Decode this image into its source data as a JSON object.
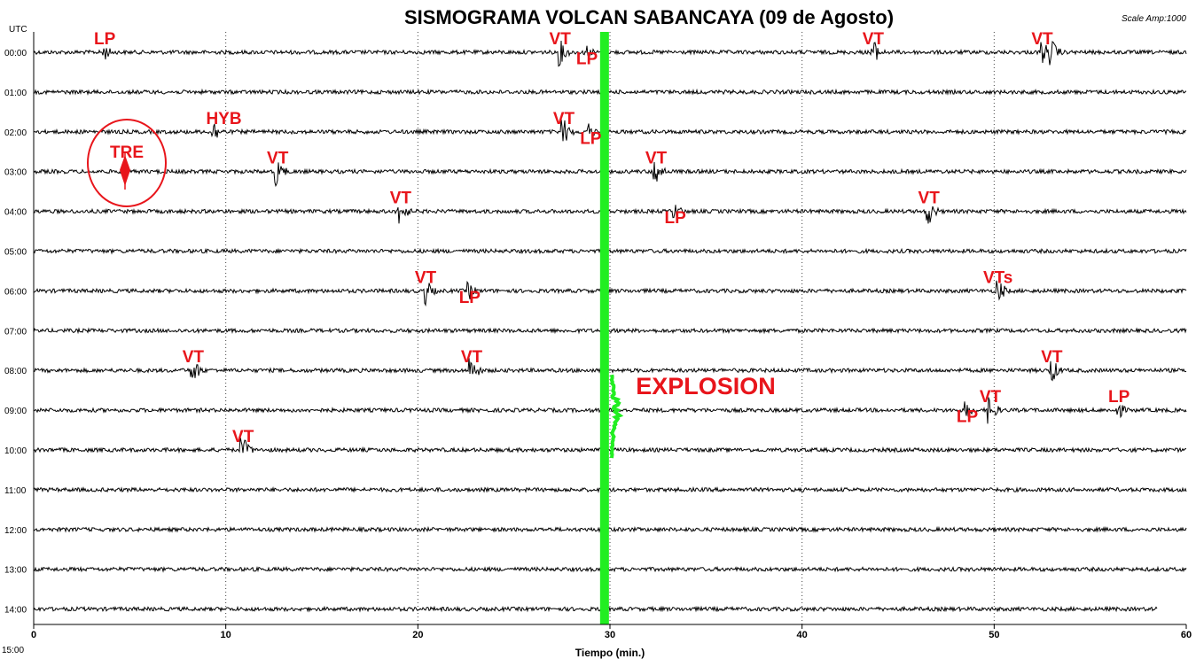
{
  "chart_data": {
    "type": "line",
    "title": "SISMOGRAMA VOLCAN SABANCAYA (09 de Agosto)",
    "scale_text": "Scale Amp:1000",
    "y_axis_label": "UTC",
    "xlabel": "Tiempo (min.)",
    "xlim": [
      0,
      60
    ],
    "x_ticks": [
      "0",
      "10",
      "20",
      "30",
      "40",
      "50",
      "60"
    ],
    "hour_labels": [
      "00:00",
      "01:00",
      "02:00",
      "03:00",
      "04:00",
      "05:00",
      "06:00",
      "07:00",
      "08:00",
      "09:00",
      "10:00",
      "11:00",
      "12:00",
      "13:00",
      "14:00",
      "15:00"
    ],
    "grid": "vertical dotted every 10 min",
    "colors": {
      "trace": "#000000",
      "events": "#e8151b",
      "explosion_signal": "#22ee22"
    },
    "explosion": {
      "label": "EXPLOSION",
      "hour": "09:00",
      "minute_start": 29.3,
      "minute_end": 30.4
    },
    "tremor_marker": {
      "label": "TRE",
      "hour": "03:00",
      "minute": 4.8
    },
    "trace_end_minute_last_row": 58.5,
    "events": [
      {
        "label": "LP",
        "hour": 0,
        "minute": 3.7
      },
      {
        "label": "VT",
        "hour": 0,
        "minute": 27.4
      },
      {
        "label": "LP",
        "hour": 0,
        "minute": 28.8
      },
      {
        "label": "VT",
        "hour": 0,
        "minute": 43.7
      },
      {
        "label": "VT",
        "hour": 0,
        "minute": 52.5
      },
      {
        "label": "VT",
        "hour": 0,
        "minute": 53.0
      },
      {
        "label": "HYB",
        "hour": 2,
        "minute": 9.4
      },
      {
        "label": "VT",
        "hour": 2,
        "minute": 27.6
      },
      {
        "label": "LP",
        "hour": 2,
        "minute": 28.9
      },
      {
        "label": "VT",
        "hour": 3,
        "minute": 12.7
      },
      {
        "label": "VT",
        "hour": 3,
        "minute": 32.4
      },
      {
        "label": "VT",
        "hour": 4,
        "minute": 19.1
      },
      {
        "label": "LP",
        "hour": 4,
        "minute": 33.4
      },
      {
        "label": "VT",
        "hour": 4,
        "minute": 46.6
      },
      {
        "label": "VT",
        "hour": 6,
        "minute": 20.4
      },
      {
        "label": "LP",
        "hour": 6,
        "minute": 22.7
      },
      {
        "label": "VTs",
        "hour": 6,
        "minute": 50.2
      },
      {
        "label": "VT",
        "hour": 8,
        "minute": 8.3
      },
      {
        "label": "VT",
        "hour": 8,
        "minute": 22.8
      },
      {
        "label": "VT",
        "hour": 8,
        "minute": 53.0
      },
      {
        "label": "VT",
        "hour": 9,
        "minute": 49.8
      },
      {
        "label": "LP",
        "hour": 9,
        "minute": 48.6
      },
      {
        "label": "LP",
        "hour": 9,
        "minute": 56.5
      },
      {
        "label": "VT",
        "hour": 10,
        "minute": 10.9
      }
    ],
    "annotations": [
      {
        "text": "LP",
        "x": 3.7,
        "row": 0
      },
      {
        "text": "VT",
        "x": 27.4,
        "row": 0
      },
      {
        "text": "LP",
        "x": 28.8,
        "row": 0.5
      },
      {
        "text": "VT",
        "x": 43.7,
        "row": 0
      },
      {
        "text": "VT",
        "x": 52.5,
        "row": 0
      },
      {
        "text": "HYB",
        "x": 9.9,
        "row": 2
      },
      {
        "text": "VT",
        "x": 27.6,
        "row": 2
      },
      {
        "text": "LP",
        "x": 29.0,
        "row": 2.5
      },
      {
        "text": "VT",
        "x": 12.7,
        "row": 3
      },
      {
        "text": "VT",
        "x": 32.4,
        "row": 3
      },
      {
        "text": "VT",
        "x": 19.1,
        "row": 4
      },
      {
        "text": "VT",
        "x": 46.6,
        "row": 4
      },
      {
        "text": "LP",
        "x": 33.4,
        "row": 4.5
      },
      {
        "text": "VT",
        "x": 20.4,
        "row": 6
      },
      {
        "text": "VTs",
        "x": 50.2,
        "row": 6
      },
      {
        "text": "LP",
        "x": 22.7,
        "row": 6.5
      },
      {
        "text": "VT",
        "x": 8.3,
        "row": 8
      },
      {
        "text": "VT",
        "x": 22.8,
        "row": 8
      },
      {
        "text": "VT",
        "x": 53.0,
        "row": 8
      },
      {
        "text": "VT",
        "x": 49.8,
        "row": 9
      },
      {
        "text": "LP",
        "x": 56.5,
        "row": 9
      },
      {
        "text": "LP",
        "x": 48.6,
        "row": 9.5
      },
      {
        "text": "VT",
        "x": 10.9,
        "row": 10
      }
    ]
  }
}
